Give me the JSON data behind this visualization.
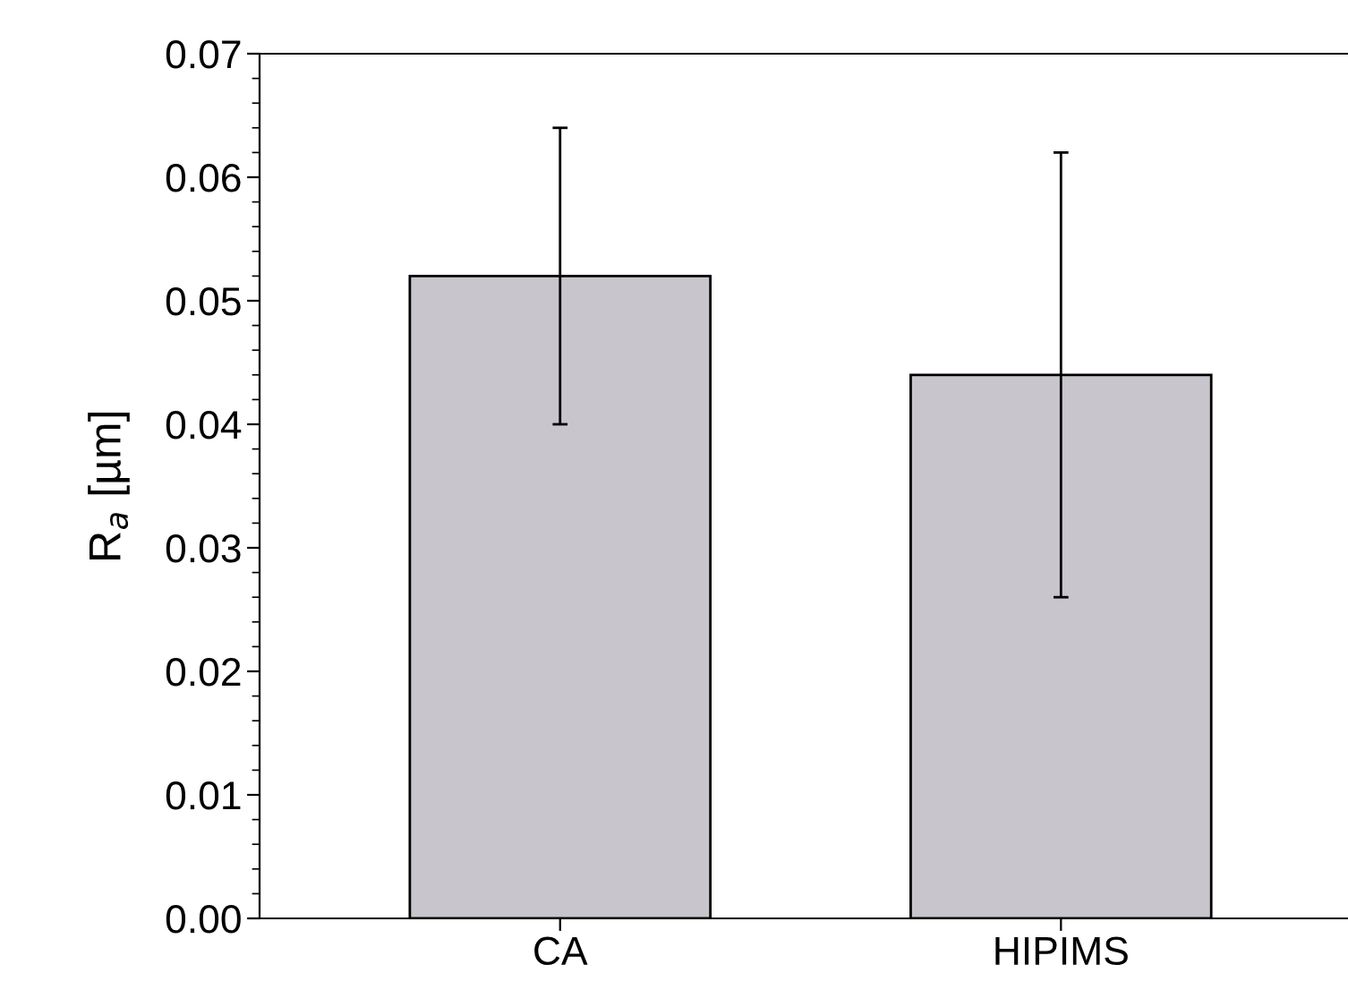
{
  "chart_data": {
    "type": "bar",
    "ylabel": "R$_{a}$ [µm]",
    "categories": [
      "CA",
      "HIPIMS"
    ],
    "values": [
      0.052,
      0.044
    ],
    "errors": [
      0.012,
      0.018
    ],
    "color": "#c8c6cc",
    "ylim": [
      0,
      0.07
    ],
    "yticks": [
      {
        "value": 0,
        "label": "0.00"
      },
      {
        "value": 0.01,
        "label": "0.01"
      },
      {
        "value": 0.02,
        "label": "0.02"
      },
      {
        "value": 0.03,
        "label": "0.03"
      },
      {
        "value": 0.04,
        "label": "0.04"
      },
      {
        "value": 0.05,
        "label": "0.05"
      },
      {
        "value": 0.06,
        "label": "0.06"
      },
      {
        "value": 0.07,
        "label": "0.07"
      }
    ],
    "grid": false,
    "legend": false
  }
}
